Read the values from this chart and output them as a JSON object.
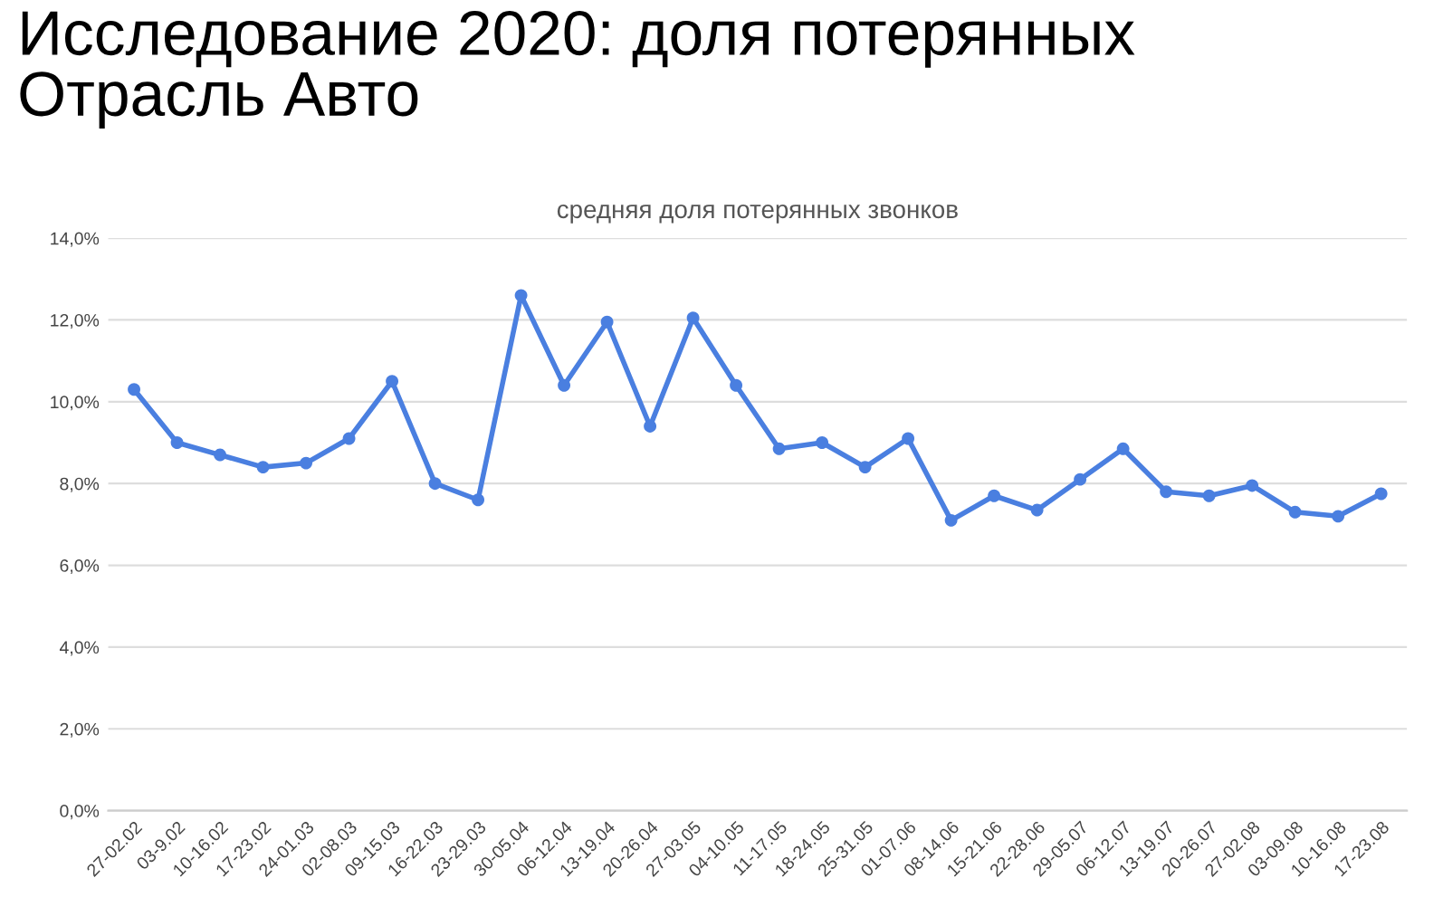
{
  "chart_data": {
    "type": "line",
    "title": "Исследование 2020: доля потерянных\nОтрасль Авто",
    "subtitle": "средняя доля потерянных звонков",
    "categories": [
      "27-02.02",
      "03-9.02",
      "10-16.02",
      "17-23.02",
      "24-01.03",
      "02-08.03",
      "09-15.03",
      "16-22.03",
      "23-29.03",
      "30-05.04",
      "06-12.04",
      "13-19.04",
      "20-26.04",
      "27-03.05",
      "04-10.05",
      "11-17.05",
      "18-24.05",
      "25-31.05",
      "01-07.06",
      "08-14.06",
      "15-21.06",
      "22-28.06",
      "29-05.07",
      "06-12.07",
      "13-19.07",
      "20-26.07",
      "27-02.08",
      "03-09.08",
      "10-16.08",
      "17-23.08"
    ],
    "series": [
      {
        "color": "#4a7fe0",
        "values": [
          10.3,
          9.0,
          8.7,
          8.4,
          8.5,
          9.1,
          10.5,
          8.0,
          7.6,
          12.6,
          10.4,
          11.95,
          9.4,
          12.05,
          10.4,
          8.85,
          9.0,
          8.4,
          9.1,
          7.1,
          7.7,
          7.35,
          8.1,
          8.85,
          7.8,
          7.7,
          7.95,
          7.3,
          7.2,
          7.75
        ]
      }
    ],
    "ylim": [
      0,
      14
    ],
    "yticks": [
      {
        "value": 0,
        "label": "0,0%"
      },
      {
        "value": 2,
        "label": "2,0%"
      },
      {
        "value": 4,
        "label": "4,0%"
      },
      {
        "value": 6,
        "label": "6,0%"
      },
      {
        "value": 8,
        "label": "8,0%"
      },
      {
        "value": 10,
        "label": "10,0%"
      },
      {
        "value": 12,
        "label": "12,0%"
      },
      {
        "value": 14,
        "label": "14,0%"
      }
    ],
    "grid": "y",
    "marker": "circle",
    "line_style": "solid",
    "legend": false
  }
}
